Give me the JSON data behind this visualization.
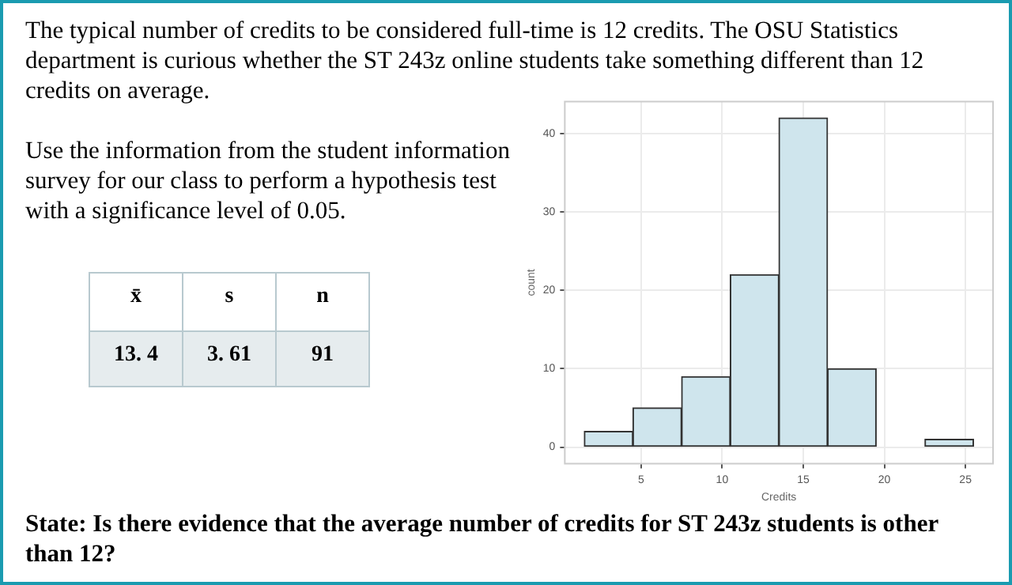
{
  "chart_data": {
    "type": "histogram",
    "bins": [
      1.5,
      4.5,
      7.5,
      10.5,
      13.5,
      16.5,
      19.5,
      22.5,
      25.5
    ],
    "values": [
      2,
      5,
      9,
      22,
      42,
      10,
      0,
      1
    ],
    "color": "#cfe5ed",
    "xlabel": "Credits",
    "ylabel": "count",
    "xlim": [
      0.3,
      26.7
    ],
    "xticks": [
      5,
      10,
      15,
      20,
      25
    ],
    "ylim": [
      -2.1,
      44.1
    ],
    "yticks": [
      0,
      10,
      20,
      30,
      40
    ],
    "grid": true,
    "annotations": [
      "The typical number of credits to be considered full-time is 12 credits. The OSU Statistics department is curious whether the ST 243z online students take something different than 12 credits on average.",
      "Use the information from the student information survey for our class to perform a hypothesis test with a significance level of 0.05.",
      "x̄",
      "s",
      "n",
      "13. 4",
      "3. 61",
      "91",
      "State: Is there evidence that the average number of credits for ST 243z students is other than 12?"
    ]
  }
}
